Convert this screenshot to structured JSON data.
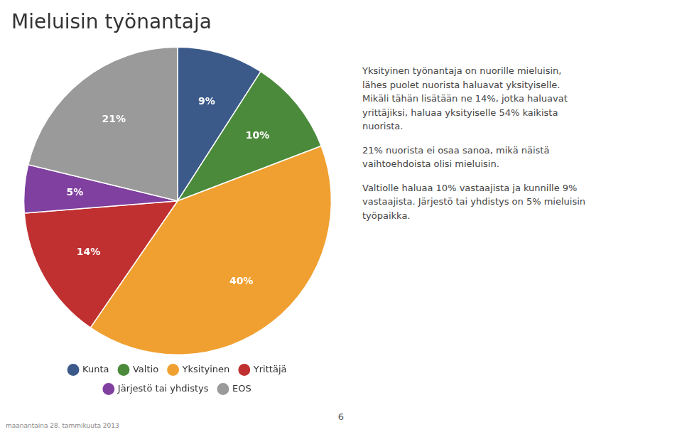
{
  "chart_data": {
    "type": "pie",
    "title": "Mieluisin työnantaja",
    "categories": [
      "Kunta",
      "Valtio",
      "Yksityinen",
      "Yrittäjä",
      "Järjestö tai yhdistys",
      "EOS"
    ],
    "values": [
      9,
      10,
      40,
      14,
      5,
      21
    ],
    "value_labels": [
      "9%",
      "10%",
      "40%",
      "14%",
      "5%",
      "21%"
    ],
    "colors": [
      "#3B5A8A",
      "#4A8A3A",
      "#F0A030",
      "#C03030",
      "#8040A0",
      "#9A9A9A"
    ],
    "data_labels": true,
    "legend": "bottom",
    "annotations": {
      "body": [
        [
          "Yksityinen työnantaja on nuorille mieluisin,",
          "lähes puolet nuorista haluavat yksityiselle.",
          "Mikäli tähän lisätään ne 14%, jotka haluavat",
          "yrittäjiksi, haluaa yksityiselle 54% kaikista",
          "nuorista."
        ],
        [
          "21% nuorista ei osaa sanoa, mikä näistä",
          "vaihtoehdoista olisi mieluisin."
        ],
        [
          "Valtiolle haluaa 10% vastaajista ja kunnille 9%",
          "vastaajista. Järjestö tai yhdistys on 5% mieluisin",
          "työpaikka."
        ]
      ],
      "page": "6",
      "date": "maanantaina 28. tammikuuta 2013"
    }
  }
}
